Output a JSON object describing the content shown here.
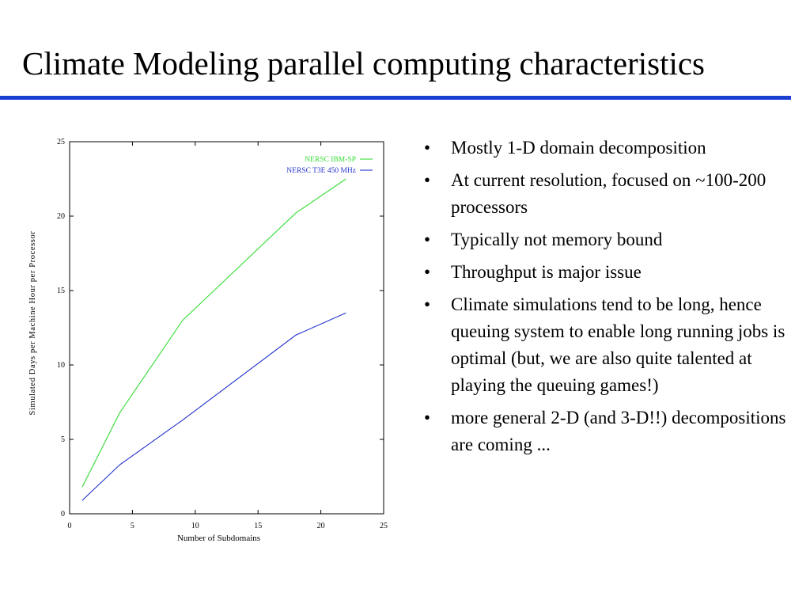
{
  "slide": {
    "title": "Climate Modeling parallel computing characteristics",
    "rule_color": "#1a3fd0"
  },
  "bullets": [
    "Mostly 1-D domain decomposition",
    "At current resolution, focused on ~100-200 processors",
    "Typically not memory bound",
    "Throughput is major issue",
    "Climate simulations tend to be long, hence queuing system to enable long running jobs is optimal (but, we are also quite talented at playing the queuing games!)",
    "more general 2-D (and 3-D!!) decompositions are coming ..."
  ],
  "chart_data": {
    "type": "line",
    "title": "",
    "xlabel": "Number of Subdomains",
    "ylabel": "Simulated Days per Machine Hour per Processor",
    "xlim": [
      0,
      25
    ],
    "ylim": [
      0,
      25
    ],
    "xticks": [
      0,
      5,
      10,
      15,
      20,
      25
    ],
    "yticks": [
      0,
      5,
      10,
      15,
      20,
      25
    ],
    "grid": false,
    "legend_position": "top-right",
    "series": [
      {
        "name": "NERSC IBM-SP",
        "color": "#33dd33",
        "x": [
          1,
          4,
          9,
          18,
          22
        ],
        "y": [
          1.8,
          6.8,
          13.0,
          20.2,
          22.5
        ]
      },
      {
        "name": "NERSC T3E 450 MHz",
        "color": "#2233cc",
        "x": [
          1,
          4,
          9,
          18,
          22
        ],
        "y": [
          0.9,
          3.3,
          6.3,
          12.0,
          13.5
        ]
      }
    ]
  }
}
